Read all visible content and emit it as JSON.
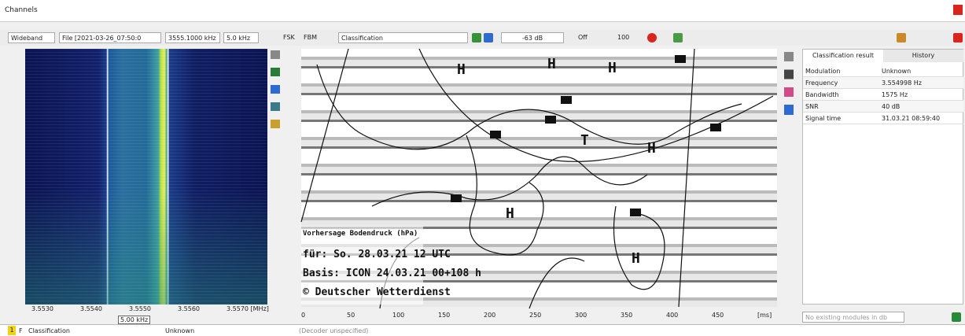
{
  "window": {
    "title": "Channels"
  },
  "toolbar": {
    "source": "Wideband",
    "file": "File [2021-03-26_07:50:0",
    "frequency": "3555.1000 kHz",
    "bandwidth": "5.0 kHz",
    "mode": "FSK",
    "mode2": "FBM",
    "classifier": "Classification",
    "level": "-63 dB",
    "squelch": "Off",
    "zoom": "100"
  },
  "spectrum": {
    "ticks": [
      "3.5530",
      "3.5540",
      "3.5550",
      "3.5560",
      "3.5570 [MHz]"
    ],
    "span": "5.00 kHz"
  },
  "fax": {
    "labels": [
      "Vorhersage Bodendruck (hPa)",
      "für: So. 28.03.21 12 UTC",
      "Basis: ICON 24.03.21 00+108 h",
      "© Deutscher Wetterdienst"
    ],
    "ticks": [
      "0",
      "50",
      "100",
      "150",
      "200",
      "250",
      "300",
      "350",
      "400",
      "450",
      "[ms]"
    ]
  },
  "result": {
    "tabs": [
      "Classification result",
      "History"
    ],
    "rows": [
      [
        "Modulation",
        "Unknown"
      ],
      [
        "Frequency",
        "3.554998 Hz"
      ],
      [
        "Bandwidth",
        "1575 Hz"
      ],
      [
        "SNR",
        "40 dB"
      ],
      [
        "Signal time",
        "31.03.21 08:59:40"
      ]
    ]
  },
  "modules": {
    "placeholder": "No existing modules in db"
  },
  "status": {
    "index": "1",
    "flag": "F",
    "name": "Classification",
    "state": "Unknown",
    "decoder": "(Decoder unspecified)"
  }
}
